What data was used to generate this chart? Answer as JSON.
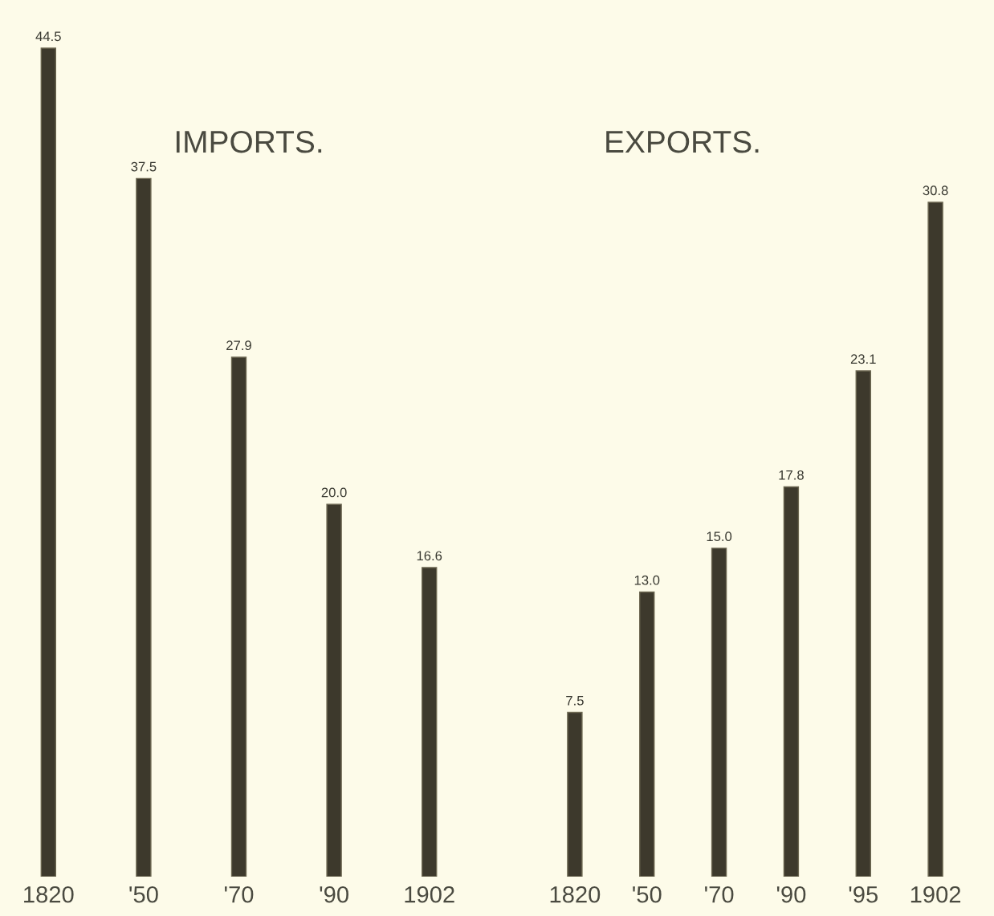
{
  "chart_data": [
    {
      "type": "bar",
      "title": "IMPORTS.",
      "categories": [
        "1820",
        "'50",
        "'70",
        "'90",
        "1902"
      ],
      "values": [
        44.5,
        37.5,
        27.9,
        20.0,
        16.6
      ],
      "value_labels": [
        "44.5",
        "37.5",
        "27.9",
        "20.0",
        "16.6"
      ],
      "color": "#3d392c",
      "tick_labels": "x",
      "grid": false,
      "legend": false
    },
    {
      "type": "bar",
      "title": "EXPORTS.",
      "categories": [
        "1820",
        "'50",
        "'70",
        "'90",
        "'95",
        "1902"
      ],
      "values": [
        7.5,
        13.0,
        15.0,
        17.8,
        23.1,
        30.8
      ],
      "value_labels": [
        "7.5",
        "13.0",
        "15.0",
        "17.8",
        "23.1",
        "30.8"
      ],
      "color": "#3d392c",
      "tick_labels": "x",
      "grid": false,
      "legend": false
    }
  ]
}
